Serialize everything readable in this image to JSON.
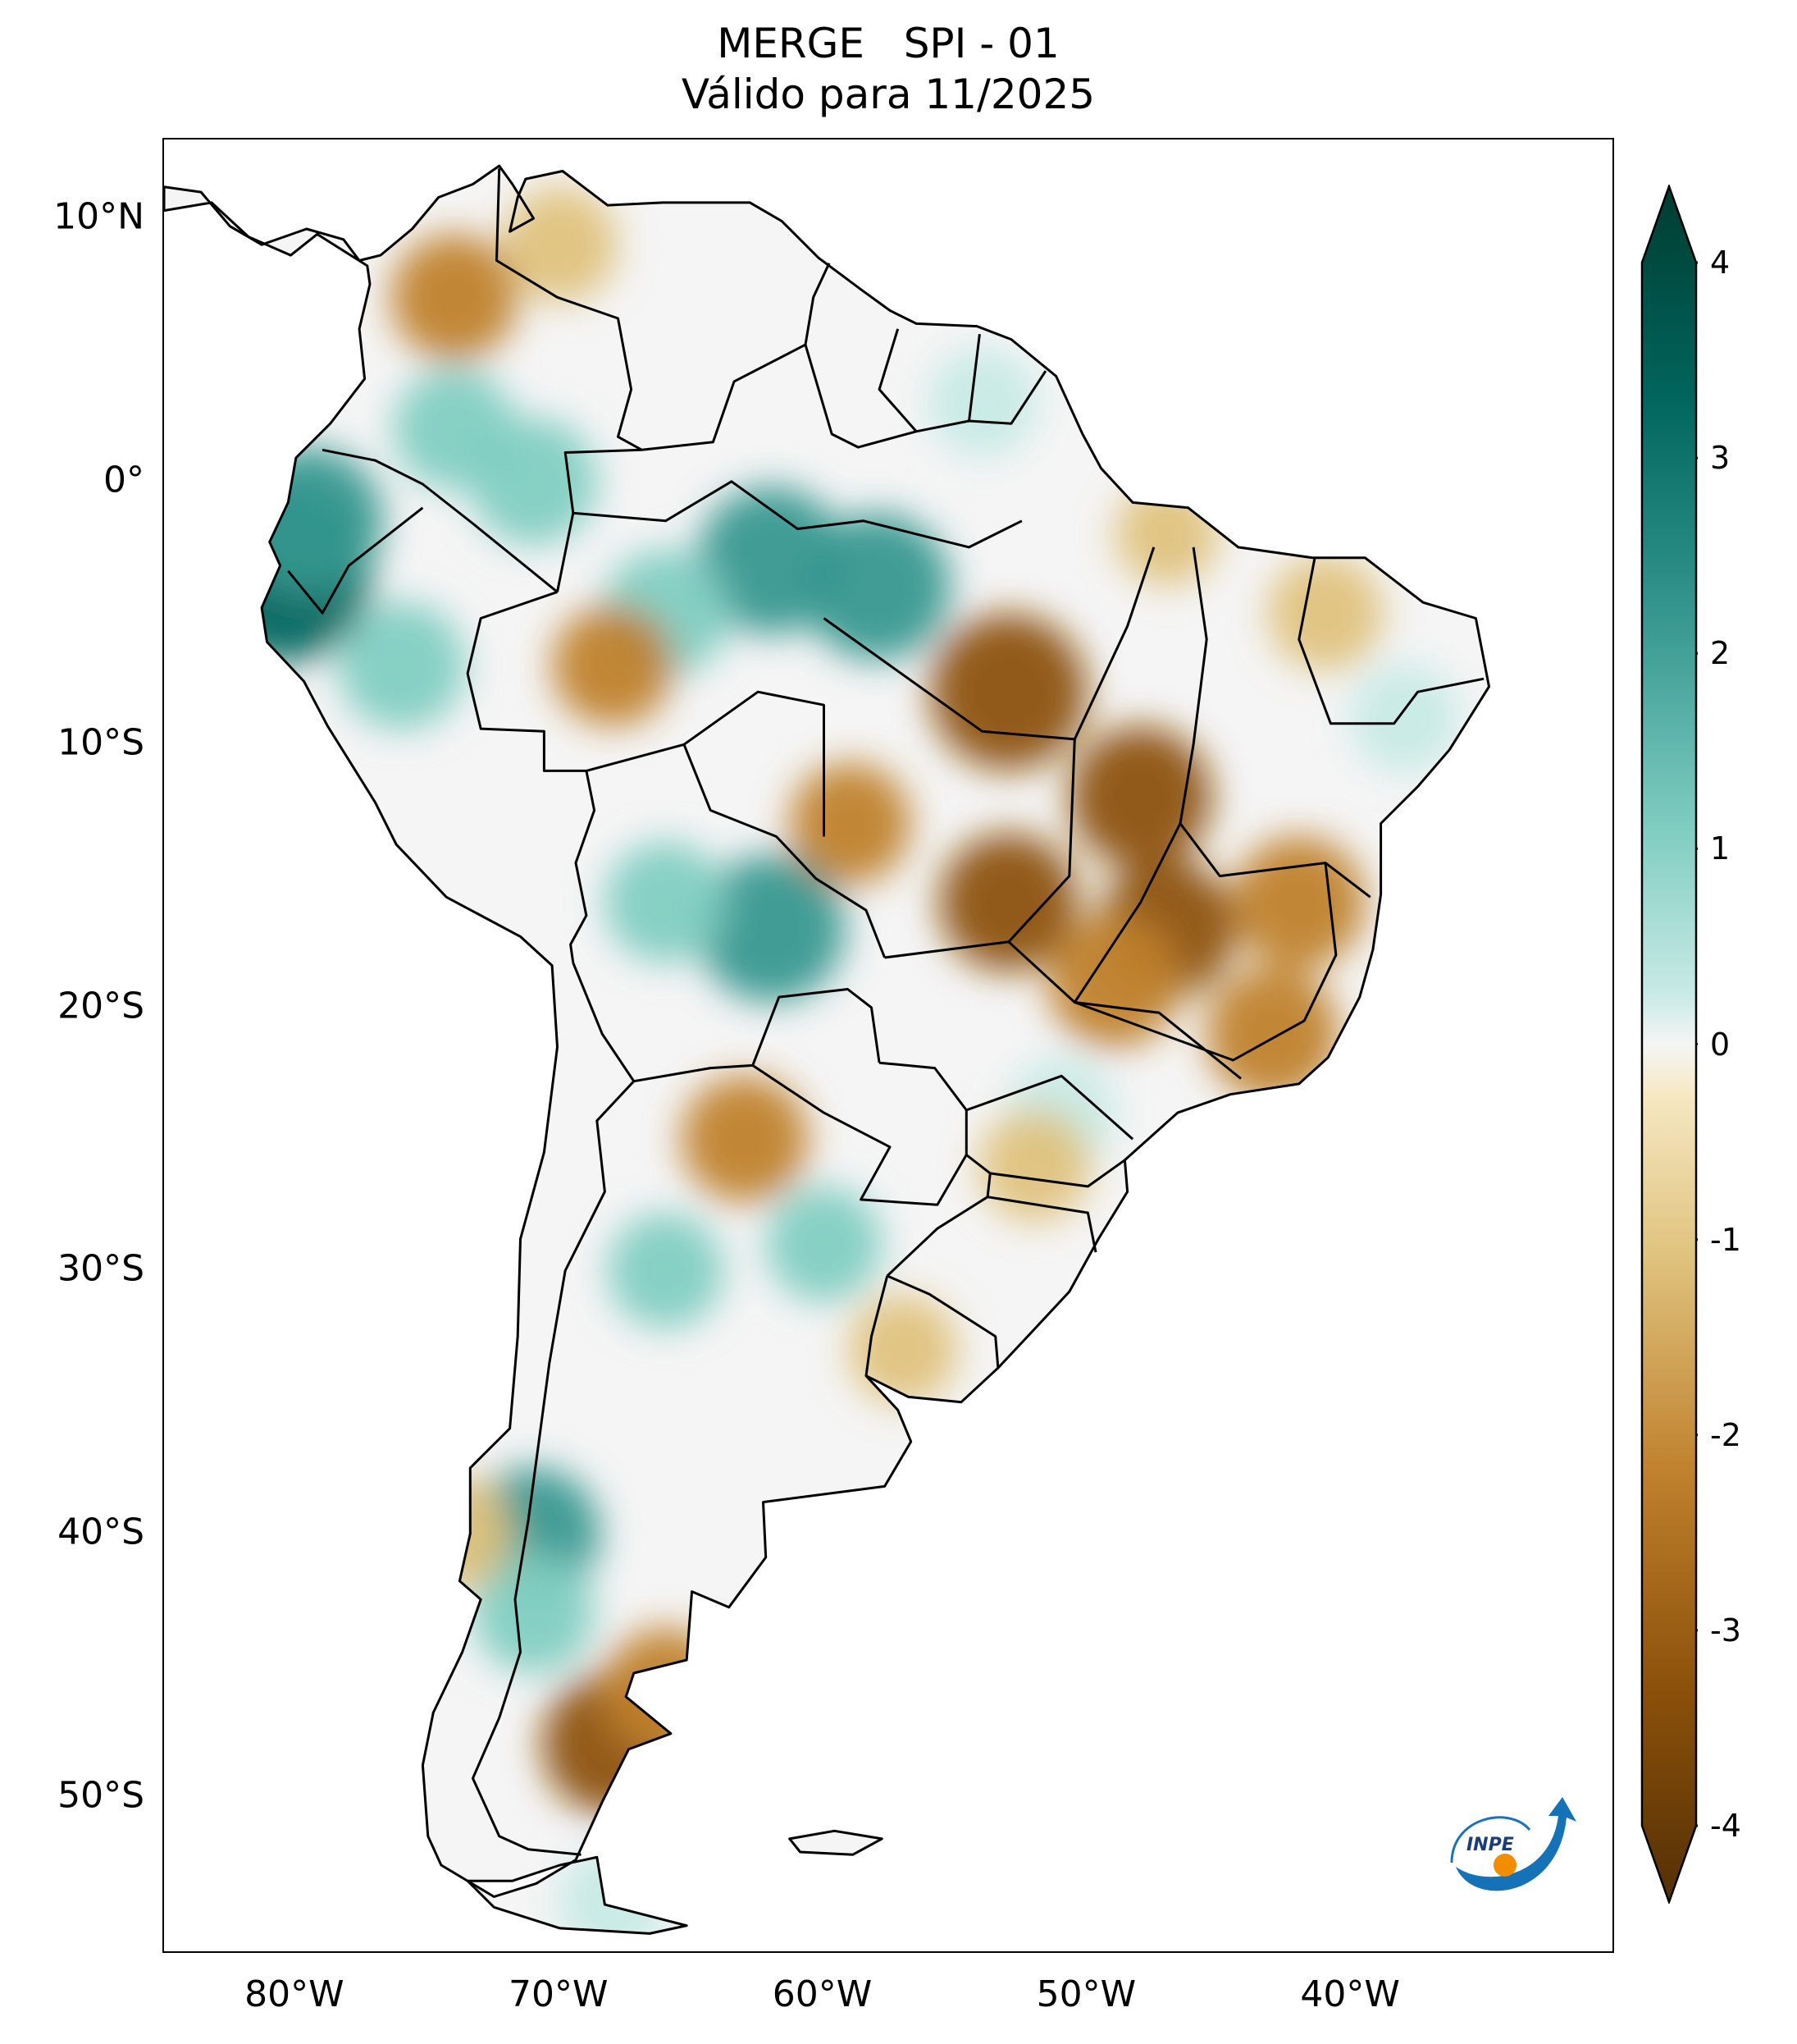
{
  "title": {
    "line1": "MERGE   SPI - 01",
    "line2": "Válido para 11/2025"
  },
  "map": {
    "lat_axis": [
      {
        "lat": 10,
        "label": "10°N"
      },
      {
        "lat": 0,
        "label": "0°"
      },
      {
        "lat": -10,
        "label": "10°S"
      },
      {
        "lat": -20,
        "label": "20°S"
      },
      {
        "lat": -30,
        "label": "30°S"
      },
      {
        "lat": -40,
        "label": "40°S"
      },
      {
        "lat": -50,
        "label": "50°S"
      }
    ],
    "lon_axis": [
      {
        "lon": -80,
        "label": "80°W"
      },
      {
        "lon": -70,
        "label": "70°W"
      },
      {
        "lon": -60,
        "label": "60°W"
      },
      {
        "lon": -50,
        "label": "50°W"
      },
      {
        "lon": -40,
        "label": "40°W"
      }
    ],
    "lon_range": [
      -85,
      -30
    ],
    "lat_range": [
      -56,
      13
    ],
    "anomalies": [
      {
        "lon": -80.5,
        "lat": -3.5,
        "spi": 3.5
      },
      {
        "lon": -79.5,
        "lat": -1.5,
        "spi": 2.5
      },
      {
        "lon": -62,
        "lat": -3,
        "spi": 2.5
      },
      {
        "lon": -58,
        "lat": -4,
        "spi": 2.5
      },
      {
        "lon": -66,
        "lat": -5,
        "spi": 1.8
      },
      {
        "lon": -71,
        "lat": 0,
        "spi": 1.8
      },
      {
        "lon": -74,
        "lat": 2,
        "spi": 1.6
      },
      {
        "lon": -76,
        "lat": -7,
        "spi": 1.8
      },
      {
        "lon": -62,
        "lat": -17,
        "spi": 2.5
      },
      {
        "lon": -66,
        "lat": -16,
        "spi": 1.6
      },
      {
        "lon": -71,
        "lat": -40,
        "spi": 2.0
      },
      {
        "lon": -71,
        "lat": -43,
        "spi": 1.6
      },
      {
        "lon": -66,
        "lat": -30,
        "spi": 1.4
      },
      {
        "lon": -60,
        "lat": -29,
        "spi": 1.4
      },
      {
        "lon": -38,
        "lat": -9,
        "spi": 1.2
      },
      {
        "lon": -54,
        "lat": 3,
        "spi": 1.2
      },
      {
        "lon": -68,
        "lat": -54,
        "spi": 1.2
      },
      {
        "lon": -51,
        "lat": -24,
        "spi": 1.2
      },
      {
        "lon": -74,
        "lat": 7,
        "spi": -1.8
      },
      {
        "lon": -70,
        "lat": 9,
        "spi": -1.4
      },
      {
        "lon": -53,
        "lat": -8,
        "spi": -2.8
      },
      {
        "lon": -48,
        "lat": -12,
        "spi": -2.3
      },
      {
        "lon": -53,
        "lat": -16,
        "spi": -2.2
      },
      {
        "lon": -47,
        "lat": -17,
        "spi": -2.2
      },
      {
        "lon": -42,
        "lat": -16,
        "spi": -2.0
      },
      {
        "lon": -49,
        "lat": -19,
        "spi": -2.0
      },
      {
        "lon": -43,
        "lat": -21,
        "spi": -2.0
      },
      {
        "lon": -59,
        "lat": -13,
        "spi": -1.6
      },
      {
        "lon": -63,
        "lat": -25,
        "spi": -1.8
      },
      {
        "lon": -68,
        "lat": -7,
        "spi": -1.6
      },
      {
        "lon": -68,
        "lat": -48,
        "spi": -2.3
      },
      {
        "lon": -66,
        "lat": -46,
        "spi": -1.8
      },
      {
        "lon": -74,
        "lat": -40,
        "spi": -1.4
      },
      {
        "lon": -41,
        "lat": -5,
        "spi": -1.4
      },
      {
        "lon": -52,
        "lat": -26,
        "spi": -1.3
      },
      {
        "lon": -57,
        "lat": -33,
        "spi": -1.2
      },
      {
        "lon": -47,
        "lat": -2,
        "spi": -1.0
      }
    ]
  },
  "colorbar": {
    "ticks": [
      {
        "value": 4,
        "label": "4"
      },
      {
        "value": 3,
        "label": "3"
      },
      {
        "value": 2,
        "label": "2"
      },
      {
        "value": 1,
        "label": "1"
      },
      {
        "value": 0,
        "label": "0"
      },
      {
        "value": -1,
        "label": "-1"
      },
      {
        "value": -2,
        "label": "-2"
      },
      {
        "value": -3,
        "label": "-3"
      },
      {
        "value": -4,
        "label": "-4"
      }
    ],
    "colors": {
      "max": "#003c30",
      "strong_wet": "#01665e",
      "wet": "#35978f",
      "moist": "#80cdc1",
      "light_wet": "#c7eae5",
      "neutral": "#f5f5f5",
      "light_dry": "#f6e8c3",
      "dry": "#dfc27d",
      "very_dry": "#bf812d",
      "strong_dry": "#8c510a",
      "min": "#543005"
    }
  },
  "logo": {
    "text": "INPE"
  }
}
